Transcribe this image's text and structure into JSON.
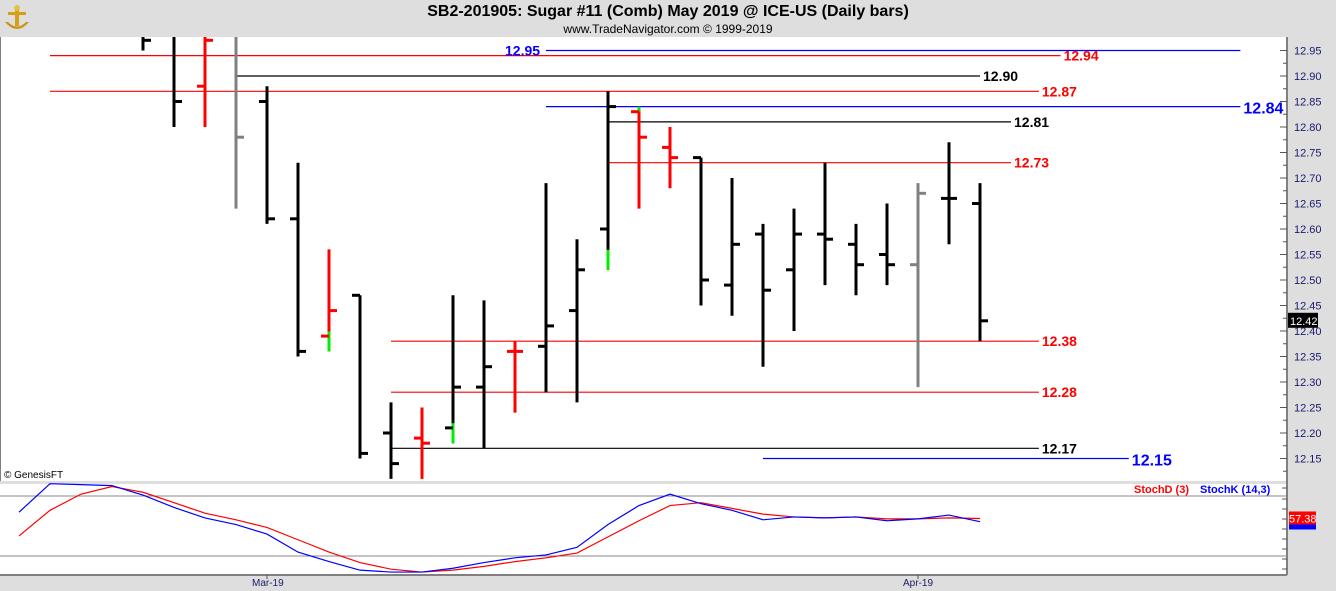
{
  "header": {
    "title": "SB2-201905:  Sugar #11 (Comb) May 2019 @ ICE-US  (Daily bars)",
    "subtitle": "www.TradeNavigator.com © 1999-2019",
    "logo_icon": "gold-anchor-logo-icon"
  },
  "watermark": "© GenesisFT",
  "colors": {
    "up": "#000000",
    "down": "#ff0000",
    "neutral": "#808080",
    "highlight": "#00ee00",
    "blue": "#0000ff",
    "axis_text": "#1a1a6e"
  },
  "chart_data": [
    {
      "type": "ohlc",
      "title": "SB2-201905:  Sugar #11 (Comb) May 2019 @ ICE-US  (Daily bars)",
      "ylim": [
        12.11,
        12.98
      ],
      "yticks": [
        "12.95",
        "12.90",
        "12.85",
        "12.80",
        "12.75",
        "12.70",
        "12.65",
        "12.60",
        "12.55",
        "12.50",
        "12.45",
        "12.40",
        "12.35",
        "12.30",
        "12.25",
        "12.20",
        "12.15"
      ],
      "x_labels": [
        {
          "label": "Mar-19",
          "bar": 4
        },
        {
          "label": "Apr-19",
          "bar": 25
        }
      ],
      "last_price": "12.42",
      "bars": [
        {
          "o": 12.98,
          "h": 12.99,
          "l": 12.95,
          "c": 12.97,
          "color": "#000000"
        },
        {
          "o": 12.99,
          "h": 12.99,
          "l": 12.8,
          "c": 12.85,
          "color": "#000000"
        },
        {
          "o": 12.88,
          "h": 12.99,
          "l": 12.8,
          "c": 12.97,
          "color": "#ff0000"
        },
        {
          "o": 12.99,
          "h": 12.99,
          "l": 12.64,
          "c": 12.78,
          "color": "#808080"
        },
        {
          "o": 12.85,
          "h": 12.88,
          "l": 12.61,
          "c": 12.62,
          "color": "#000000"
        },
        {
          "o": 12.62,
          "h": 12.73,
          "l": 12.35,
          "c": 12.36,
          "color": "#000000"
        },
        {
          "o": 12.39,
          "h": 12.56,
          "l": 12.36,
          "c": 12.44,
          "color": "#ff0000",
          "hl": "low"
        },
        {
          "o": 12.47,
          "h": 12.47,
          "l": 12.15,
          "c": 12.16,
          "color": "#000000"
        },
        {
          "o": 12.2,
          "h": 12.26,
          "l": 12.11,
          "c": 12.14,
          "color": "#000000"
        },
        {
          "o": 12.19,
          "h": 12.25,
          "l": 12.11,
          "c": 12.18,
          "color": "#ff0000"
        },
        {
          "o": 12.21,
          "h": 12.47,
          "l": 12.18,
          "c": 12.29,
          "color": "#000000",
          "hl": "low"
        },
        {
          "o": 12.29,
          "h": 12.46,
          "l": 12.17,
          "c": 12.33,
          "color": "#000000"
        },
        {
          "o": 12.36,
          "h": 12.38,
          "l": 12.24,
          "c": 12.36,
          "color": "#ff0000"
        },
        {
          "o": 12.37,
          "h": 12.69,
          "l": 12.28,
          "c": 12.41,
          "color": "#000000"
        },
        {
          "o": 12.44,
          "h": 12.58,
          "l": 12.26,
          "c": 12.52,
          "color": "#000000"
        },
        {
          "o": 12.6,
          "h": 12.87,
          "l": 12.52,
          "c": 12.84,
          "color": "#000000",
          "hl": "low"
        },
        {
          "o": 12.83,
          "h": 12.84,
          "l": 12.64,
          "c": 12.78,
          "color": "#ff0000",
          "hl": "high"
        },
        {
          "o": 12.76,
          "h": 12.8,
          "l": 12.68,
          "c": 12.74,
          "color": "#ff0000"
        },
        {
          "o": 12.74,
          "h": 12.74,
          "l": 12.45,
          "c": 12.5,
          "color": "#000000"
        },
        {
          "o": 12.49,
          "h": 12.7,
          "l": 12.43,
          "c": 12.57,
          "color": "#000000"
        },
        {
          "o": 12.59,
          "h": 12.61,
          "l": 12.33,
          "c": 12.48,
          "color": "#000000"
        },
        {
          "o": 12.52,
          "h": 12.64,
          "l": 12.4,
          "c": 12.59,
          "color": "#000000"
        },
        {
          "o": 12.59,
          "h": 12.73,
          "l": 12.49,
          "c": 12.58,
          "color": "#000000"
        },
        {
          "o": 12.57,
          "h": 12.61,
          "l": 12.47,
          "c": 12.53,
          "color": "#000000"
        },
        {
          "o": 12.55,
          "h": 12.65,
          "l": 12.49,
          "c": 12.53,
          "color": "#000000"
        },
        {
          "o": 12.53,
          "h": 12.69,
          "l": 12.29,
          "c": 12.67,
          "color": "#808080"
        },
        {
          "o": 12.66,
          "h": 12.77,
          "l": 12.57,
          "c": 12.66,
          "color": "#000000"
        },
        {
          "o": 12.65,
          "h": 12.69,
          "l": 12.38,
          "c": 12.42,
          "color": "#000000"
        }
      ],
      "levels": [
        {
          "price": 12.94,
          "label": "12.94",
          "color": "#ff0000",
          "from_bar": -3,
          "to_bar": 29.6
        },
        {
          "price": 12.95,
          "label": "12.95",
          "color": "#0000ff",
          "from_bar": 13,
          "to_bar": 35.4,
          "label_left": true
        },
        {
          "price": 12.9,
          "label": "12.90",
          "color": "#000000",
          "from_bar": 3,
          "to_bar": 27
        },
        {
          "price": 12.87,
          "label": "12.87",
          "color": "#ff0000",
          "from_bar": -3,
          "to_bar": 28.9
        },
        {
          "price": 12.84,
          "label": "12.84",
          "color": "#0000ff",
          "from_bar": 13,
          "to_bar": 35.4,
          "big": true
        },
        {
          "price": 12.81,
          "label": "12.81",
          "color": "#000000",
          "from_bar": 15,
          "to_bar": 28
        },
        {
          "price": 12.73,
          "label": "12.73",
          "color": "#ff0000",
          "from_bar": 15,
          "to_bar": 28
        },
        {
          "price": 12.38,
          "label": "12.38",
          "color": "#ff0000",
          "from_bar": 8,
          "to_bar": 28.9
        },
        {
          "price": 12.28,
          "label": "12.28",
          "color": "#ff0000",
          "from_bar": 8,
          "to_bar": 28.9
        },
        {
          "price": 12.17,
          "label": "12.17",
          "color": "#000000",
          "from_bar": 8,
          "to_bar": 28.9
        },
        {
          "price": 12.15,
          "label": "12.15",
          "color": "#0000ff",
          "from_bar": 20,
          "to_bar": 31.8,
          "big": true
        }
      ]
    },
    {
      "type": "line",
      "ylim": [
        0,
        100
      ],
      "series": [
        {
          "name": "StochD (3)",
          "color": "#ff0000",
          "values": [
            39,
            66,
            83,
            91,
            85,
            74,
            63,
            56,
            48,
            35,
            22,
            11,
            4,
            1,
            3,
            7,
            12,
            16,
            21,
            38,
            55,
            71,
            74,
            68,
            62,
            59,
            58,
            59,
            57,
            57,
            58,
            57.38
          ]
        },
        {
          "name": "StochK (14,3)",
          "color": "#0000ff",
          "values": [
            64,
            94,
            93,
            92,
            82,
            69,
            58,
            51,
            41,
            22,
            12,
            3,
            1,
            1,
            5,
            11,
            16,
            19,
            27,
            51,
            71,
            83,
            73,
            66,
            56,
            59,
            58,
            59,
            55,
            57,
            61,
            54
          ]
        }
      ],
      "first_bar": -4,
      "last_value": "57.38",
      "reference_levels": [
        80,
        20
      ]
    }
  ]
}
